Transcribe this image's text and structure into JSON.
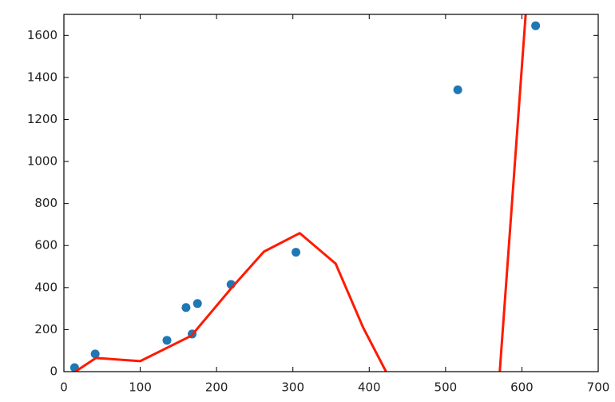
{
  "chart_data": {
    "type": "scatter",
    "xlim": [
      0,
      700
    ],
    "ylim": [
      0,
      1700
    ],
    "xticks": [
      0,
      100,
      200,
      300,
      400,
      500,
      600,
      700
    ],
    "yticks": [
      0,
      200,
      400,
      600,
      800,
      1000,
      1200,
      1400,
      1600
    ],
    "series": [
      {
        "type": "scatter",
        "color": "#1f77b4",
        "x": [
          14,
          41,
          135,
          160,
          168,
          175,
          219,
          304,
          516,
          618
        ],
        "values": [
          19,
          84,
          149,
          305,
          179,
          324,
          415,
          568,
          1341,
          1646
        ]
      },
      {
        "type": "line",
        "color": "#ff1a00",
        "x": [
          15,
          42,
          100,
          167,
          220,
          262,
          309,
          356,
          392,
          422,
          500,
          571,
          605
        ],
        "values": [
          0,
          65,
          50,
          171,
          400,
          571,
          659,
          514,
          210,
          0,
          null,
          0,
          1703
        ]
      }
    ]
  }
}
